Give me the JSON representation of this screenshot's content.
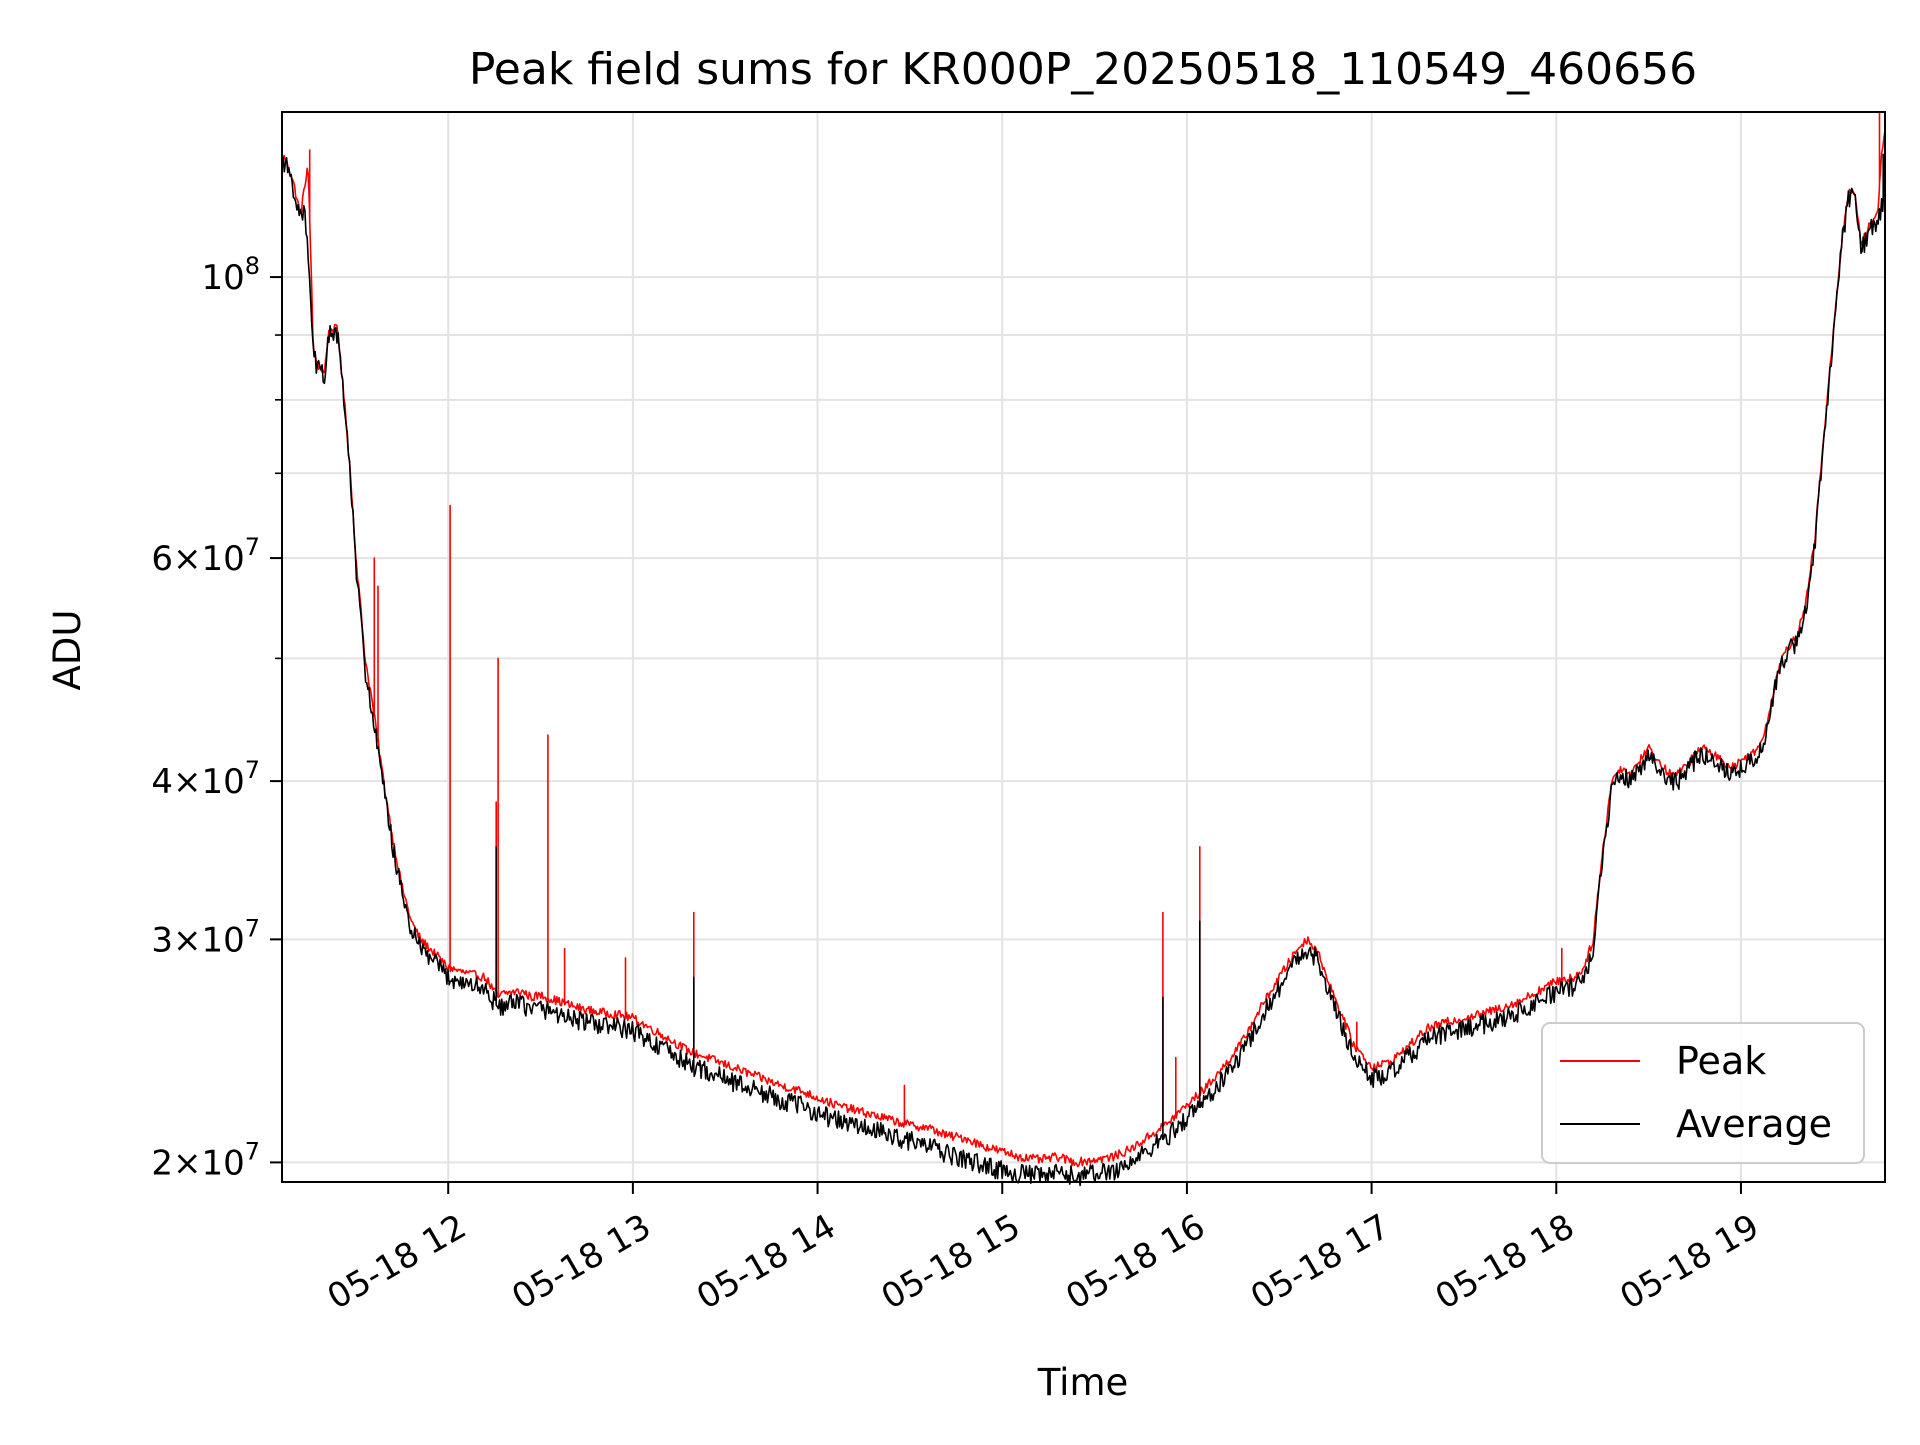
{
  "chart_data": {
    "type": "line",
    "title": "Peak field sums for KR000P_20250518_110549_460656",
    "xlabel": "Time",
    "ylabel": "ADU",
    "x_unit": "hours (May 18, 2025)",
    "xlim": [
      11.1,
      19.78
    ],
    "ylim": [
      19300000,
      135000000
    ],
    "yscale": "log",
    "grid": true,
    "legend_position": "lower-right",
    "x_ticks": [
      {
        "value": 12,
        "label": "05-18 12"
      },
      {
        "value": 13,
        "label": "05-18 13"
      },
      {
        "value": 14,
        "label": "05-18 14"
      },
      {
        "value": 15,
        "label": "05-18 15"
      },
      {
        "value": 16,
        "label": "05-18 16"
      },
      {
        "value": 17,
        "label": "05-18 17"
      },
      {
        "value": 18,
        "label": "05-18 18"
      },
      {
        "value": 19,
        "label": "05-18 19"
      }
    ],
    "y_ticks": [
      {
        "value": 20000000,
        "mantissa": "2",
        "exp": "7"
      },
      {
        "value": 30000000,
        "mantissa": "3",
        "exp": "7"
      },
      {
        "value": 40000000,
        "mantissa": "4",
        "exp": "7"
      },
      {
        "value": 60000000,
        "mantissa": "6",
        "exp": "7"
      },
      {
        "value": 100000000,
        "mantissa": "",
        "exp": "8"
      }
    ],
    "y_minor_ticks": [
      50000000,
      70000000,
      80000000,
      90000000
    ],
    "series": [
      {
        "name": "Peak",
        "color": "#ff0000",
        "x": [
          11.1,
          11.13,
          11.16,
          11.2,
          11.22,
          11.24,
          11.27,
          11.3,
          11.33,
          11.35,
          11.37,
          11.4,
          11.43,
          11.47,
          11.5,
          11.55,
          11.6,
          11.65,
          11.7,
          11.75,
          11.8,
          11.85,
          11.9,
          11.95,
          12.0,
          12.1,
          12.2,
          12.27,
          12.3,
          12.4,
          12.45,
          12.5,
          12.6,
          12.7,
          12.8,
          12.9,
          13.0,
          13.1,
          13.2,
          13.3,
          13.4,
          13.5,
          13.6,
          13.7,
          13.8,
          13.9,
          14.0,
          14.1,
          14.2,
          14.3,
          14.4,
          14.5,
          14.6,
          14.7,
          14.8,
          14.9,
          15.0,
          15.1,
          15.2,
          15.3,
          15.4,
          15.5,
          15.6,
          15.7,
          15.8,
          15.9,
          16.0,
          16.1,
          16.2,
          16.3,
          16.4,
          16.5,
          16.6,
          16.65,
          16.7,
          16.8,
          16.9,
          17.0,
          17.1,
          17.2,
          17.3,
          17.4,
          17.5,
          17.6,
          17.7,
          17.8,
          17.9,
          18.0,
          18.1,
          18.15,
          18.2,
          18.25,
          18.3,
          18.35,
          18.4,
          18.45,
          18.5,
          18.55,
          18.6,
          18.65,
          18.7,
          18.75,
          18.8,
          18.85,
          18.9,
          18.95,
          19.0,
          19.05,
          19.1,
          19.15,
          19.2,
          19.25,
          19.3,
          19.35,
          19.4,
          19.45,
          19.5,
          19.55,
          19.58,
          19.6,
          19.62,
          19.65,
          19.7,
          19.74,
          19.76,
          19.78
        ],
        "values": [
          125000000,
          123000000,
          119000000,
          112000000,
          117000000,
          123000000,
          87000000,
          85000000,
          84000000,
          90000000,
          91000000,
          91000000,
          82000000,
          70000000,
          60000000,
          50000000,
          45000000,
          40000000,
          36000000,
          33000000,
          31000000,
          30000000,
          29500000,
          29000000,
          28500000,
          28200000,
          28000000,
          27000000,
          27200000,
          27300000,
          27000000,
          27100000,
          26800000,
          26500000,
          26300000,
          26200000,
          26000000,
          25500000,
          25000000,
          24500000,
          24200000,
          23900000,
          23600000,
          23300000,
          23000000,
          22800000,
          22500000,
          22200000,
          22000000,
          21800000,
          21600000,
          21400000,
          21300000,
          21000000,
          20900000,
          20600000,
          20400000,
          20200000,
          20100000,
          20200000,
          20000000,
          20100000,
          20200000,
          20500000,
          21000000,
          21500000,
          22200000,
          22900000,
          23800000,
          24900000,
          26500000,
          28000000,
          29500000,
          30000000,
          29500000,
          27000000,
          24800000,
          23800000,
          24000000,
          24700000,
          25500000,
          25800000,
          26000000,
          26200000,
          26500000,
          26800000,
          27300000,
          27800000,
          28000000,
          28500000,
          30000000,
          35000000,
          40000000,
          41000000,
          40500000,
          41500000,
          42500000,
          41500000,
          40700000,
          40500000,
          41000000,
          42000000,
          42500000,
          42000000,
          41500000,
          41000000,
          41500000,
          42000000,
          42500000,
          45000000,
          49000000,
          51000000,
          52000000,
          55000000,
          62000000,
          75000000,
          90000000,
          108000000,
          116000000,
          117000000,
          116000000,
          106000000,
          110000000,
          112000000,
          125000000,
          130000000
        ],
        "spikes": [
          {
            "x": 11.25,
            "y": 126000000
          },
          {
            "x": 11.6,
            "y": 60000000
          },
          {
            "x": 11.62,
            "y": 57000000
          },
          {
            "x": 12.01,
            "y": 66000000
          },
          {
            "x": 12.26,
            "y": 38500000
          },
          {
            "x": 12.27,
            "y": 50000000
          },
          {
            "x": 12.54,
            "y": 43500000
          },
          {
            "x": 12.63,
            "y": 29500000
          },
          {
            "x": 12.96,
            "y": 29000000
          },
          {
            "x": 13.33,
            "y": 31500000
          },
          {
            "x": 14.47,
            "y": 23000000
          },
          {
            "x": 15.87,
            "y": 31500000
          },
          {
            "x": 15.94,
            "y": 24200000
          },
          {
            "x": 16.07,
            "y": 35500000
          },
          {
            "x": 16.92,
            "y": 25800000
          },
          {
            "x": 18.03,
            "y": 29500000
          },
          {
            "x": 19.75,
            "y": 135000000
          }
        ]
      },
      {
        "name": "Average",
        "color": "#000000",
        "x": [
          11.1,
          11.13,
          11.16,
          11.2,
          11.22,
          11.24,
          11.27,
          11.3,
          11.33,
          11.35,
          11.37,
          11.4,
          11.43,
          11.47,
          11.5,
          11.55,
          11.6,
          11.65,
          11.7,
          11.75,
          11.8,
          11.85,
          11.9,
          11.95,
          12.0,
          12.1,
          12.2,
          12.27,
          12.3,
          12.4,
          12.45,
          12.5,
          12.6,
          12.7,
          12.8,
          12.9,
          13.0,
          13.1,
          13.2,
          13.3,
          13.4,
          13.5,
          13.6,
          13.7,
          13.8,
          13.9,
          14.0,
          14.1,
          14.2,
          14.3,
          14.4,
          14.5,
          14.6,
          14.7,
          14.8,
          14.9,
          15.0,
          15.1,
          15.2,
          15.3,
          15.4,
          15.5,
          15.6,
          15.7,
          15.8,
          15.9,
          16.0,
          16.1,
          16.2,
          16.3,
          16.4,
          16.5,
          16.6,
          16.65,
          16.7,
          16.8,
          16.9,
          17.0,
          17.1,
          17.2,
          17.3,
          17.4,
          17.5,
          17.6,
          17.7,
          17.8,
          17.9,
          18.0,
          18.1,
          18.15,
          18.2,
          18.25,
          18.3,
          18.35,
          18.4,
          18.45,
          18.5,
          18.55,
          18.6,
          18.65,
          18.7,
          18.75,
          18.8,
          18.85,
          18.9,
          18.95,
          19.0,
          19.05,
          19.1,
          19.15,
          19.2,
          19.25,
          19.3,
          19.35,
          19.4,
          19.45,
          19.5,
          19.55,
          19.58,
          19.6,
          19.62,
          19.65,
          19.7,
          19.74,
          19.76,
          19.78
        ],
        "values": [
          124000000,
          122000000,
          118000000,
          111000000,
          114000000,
          104000000,
          86500000,
          84500000,
          83500000,
          89500000,
          90500000,
          90000000,
          81500000,
          69500000,
          59000000,
          49000000,
          44000000,
          39500000,
          35500000,
          32500000,
          30500000,
          29500000,
          29000000,
          28500000,
          28000000,
          27700000,
          27400000,
          26500000,
          26600000,
          26700000,
          26400000,
          26500000,
          26200000,
          25900000,
          25700000,
          25600000,
          25400000,
          24900000,
          24400000,
          23900000,
          23600000,
          23300000,
          23000000,
          22700000,
          22400000,
          22200000,
          21900000,
          21600000,
          21400000,
          21200000,
          21000000,
          20800000,
          20600000,
          20300000,
          20100000,
          19900000,
          19700000,
          19600000,
          19500000,
          19600000,
          19500000,
          19600000,
          19700000,
          20000000,
          20500000,
          21000000,
          21700000,
          22400000,
          23300000,
          24400000,
          26000000,
          27500000,
          29000000,
          29500000,
          29000000,
          26500000,
          24300000,
          23300000,
          23500000,
          24200000,
          25000000,
          25300000,
          25500000,
          25700000,
          26000000,
          26300000,
          26800000,
          27300000,
          27500000,
          28000000,
          29500000,
          34500000,
          39500000,
          40500000,
          40000000,
          41000000,
          42000000,
          41000000,
          40200000,
          40000000,
          40500000,
          41500000,
          42000000,
          41500000,
          41000000,
          40700000,
          41000000,
          41500000,
          42000000,
          44500000,
          48500000,
          50500000,
          51500000,
          54500000,
          61500000,
          74000000,
          89000000,
          107000000,
          115000000,
          116000000,
          115000000,
          105000000,
          109000000,
          111000000,
          113000000,
          117000000
        ],
        "spikes": [
          {
            "x": 12.26,
            "y": 35500000
          },
          {
            "x": 13.33,
            "y": 28000000
          },
          {
            "x": 15.87,
            "y": 27000000
          },
          {
            "x": 16.07,
            "y": 31000000
          },
          {
            "x": 19.77,
            "y": 125000000
          }
        ]
      }
    ]
  }
}
